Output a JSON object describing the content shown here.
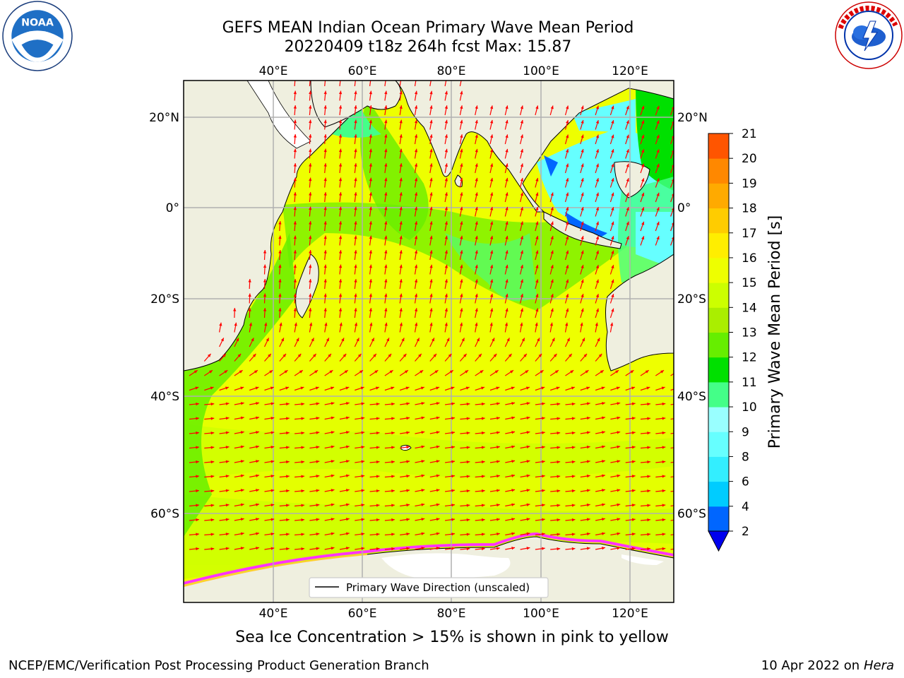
{
  "header": {
    "title_line1": "GEFS MEAN Indian Ocean Primary Wave Mean Period",
    "title_line2": "20220409 t18z 264h fcst   Max: 15.87"
  },
  "logos": {
    "left": {
      "name": "noaa-logo",
      "text": "NOAA",
      "ring_text": "NATIONAL OCEANIC AND ATMOSPHERIC ADMINISTRATION · U.S. DEPARTMENT OF COMMERCE"
    },
    "right": {
      "name": "national-weather-service-logo",
      "ring_text": "NATIONAL WEATHER SERVICE"
    }
  },
  "map": {
    "lon_ticks": [
      "40°E",
      "60°E",
      "80°E",
      "100°E",
      "120°E"
    ],
    "lat_ticks": [
      "20°N",
      "0°",
      "20°S",
      "40°S",
      "60°S"
    ],
    "lon_range": [
      20,
      130
    ],
    "lat_range": [
      -70,
      28
    ],
    "legend_label": "Primary Wave Direction (unscaled)",
    "vector_color": "#ff0000",
    "land_color": "#efefdf",
    "ice_colors": [
      "#ff33ff",
      "#ffcc33"
    ]
  },
  "colorbar": {
    "label": "Primary Wave Mean Period [s]",
    "ticks": [
      "2",
      "4",
      "6",
      "8",
      "9",
      "10",
      "11",
      "12",
      "13",
      "14",
      "15",
      "16",
      "17",
      "18",
      "19",
      "20",
      "21"
    ],
    "colors": [
      "#0066ff",
      "#00ccff",
      "#33eeff",
      "#66ffff",
      "#99ffff",
      "#44ff88",
      "#00e000",
      "#66ee00",
      "#aaee00",
      "#ccff00",
      "#eeff00",
      "#ffee00",
      "#ffcc00",
      "#ffaa00",
      "#ff8800",
      "#ff5500",
      "#ff2200"
    ],
    "under_color": "#0000ee"
  },
  "caption": "Sea Ice Concentration > 15% is shown in pink to yellow",
  "footer": {
    "left": "NCEP/EMC/Verification Post Processing Product Generation Branch",
    "right_prefix": "10 Apr 2022 on ",
    "right_machine": "Hera"
  }
}
